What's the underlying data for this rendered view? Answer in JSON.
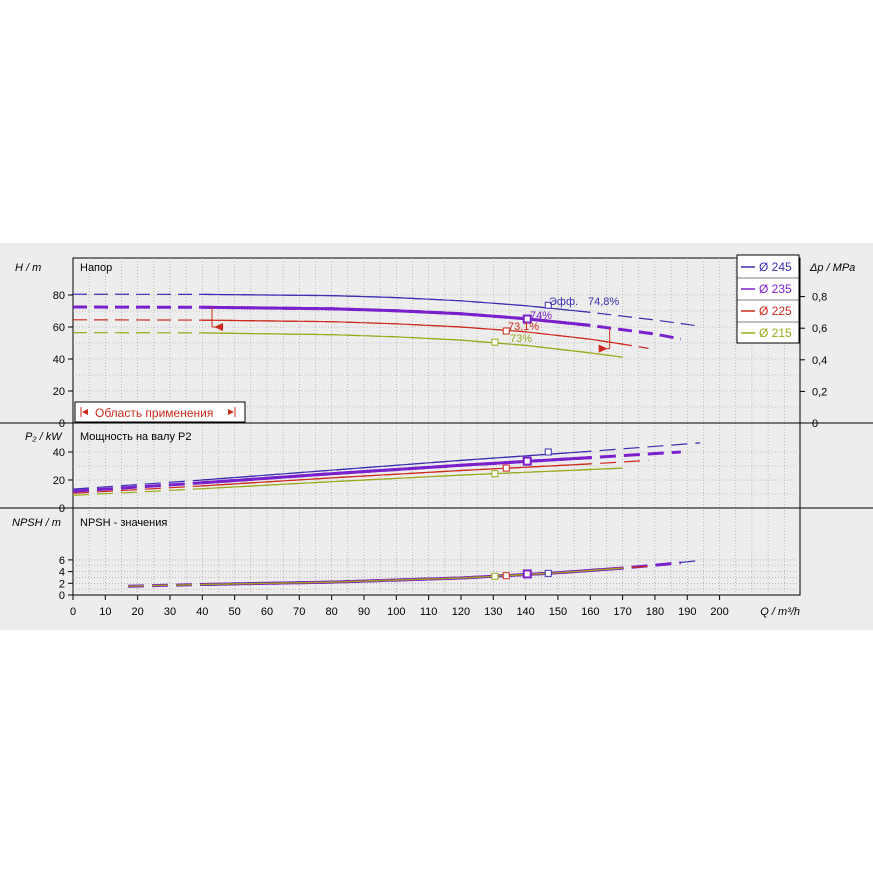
{
  "chart_data": [
    {
      "type": "line",
      "title": "Напор",
      "xlabel": "Q / m³/h",
      "ylabel": "H / m",
      "y2label": "Δp / MPa",
      "xlim": [
        0,
        225
      ],
      "ylim": [
        0,
        90
      ],
      "xticks": [
        0,
        10,
        20,
        30,
        40,
        50,
        60,
        70,
        80,
        90,
        100,
        110,
        120,
        130,
        140,
        150,
        160,
        170,
        180,
        190,
        200
      ],
      "yticks": [
        0,
        20,
        40,
        60,
        80
      ],
      "y2ticks": [
        0,
        0.2,
        0.4,
        0.6,
        0.8
      ],
      "y2ticklabels": [
        "0",
        "0,2",
        "0,4",
        "0,6",
        "0,8"
      ],
      "grid": true,
      "legend": "top-right",
      "series": [
        {
          "name": "Ø 245",
          "color": "#3a2fb0",
          "x": [
            0,
            40,
            80,
            100,
            120,
            140,
            160,
            180,
            194
          ],
          "values": [
            80.5,
            80.4,
            79.6,
            78.4,
            76.4,
            73.3,
            69.2,
            64.4,
            60.5
          ]
        },
        {
          "name": "Ø 235",
          "color": "#7a1fcc",
          "x": [
            0,
            40,
            80,
            100,
            120,
            140,
            160,
            180,
            188
          ],
          "values": [
            72.5,
            72.3,
            71.4,
            70.2,
            68.3,
            65.2,
            61.0,
            55.6,
            52.5
          ]
        },
        {
          "name": "Ø 225",
          "color": "#cc2a1c",
          "x": [
            0,
            40,
            80,
            100,
            120,
            140,
            160,
            170,
            178
          ],
          "values": [
            64.5,
            64.3,
            63.3,
            62.0,
            60.0,
            57.0,
            52.4,
            49.3,
            46.6
          ]
        },
        {
          "name": "Ø 215",
          "color": "#9aaa1c",
          "x": [
            0,
            40,
            80,
            100,
            120,
            140,
            160,
            170
          ],
          "values": [
            56.5,
            56.3,
            55.2,
            53.9,
            51.8,
            48.5,
            43.8,
            41.1
          ]
        }
      ],
      "annotations": [
        {
          "text": "Эфф.",
          "color": "#3a2fb0"
        },
        {
          "text": "74,8%",
          "color": "#3a2fb0"
        },
        {
          "text": "74%",
          "color": "#7a1fcc"
        },
        {
          "text": "73,1%",
          "color": "#cc2a1c"
        },
        {
          "text": "73%",
          "color": "#9aaa1c"
        }
      ],
      "efficiency_points": [
        {
          "series": "Ø 245",
          "x": 147,
          "y": 73.6
        },
        {
          "series": "Ø 235",
          "x": 140.5,
          "y": 65.0
        },
        {
          "series": "Ø 225",
          "x": 134,
          "y": 57.5
        },
        {
          "series": "Ø 215",
          "x": 130.5,
          "y": 50.5
        }
      ],
      "operating_range": {
        "label": "Область применения",
        "q_min": 43,
        "q_max": 166
      }
    },
    {
      "type": "line",
      "title": "Мощность на валу P2",
      "ylabel": "P₂ / kW",
      "xlim": [
        0,
        225
      ],
      "ylim": [
        0,
        50
      ],
      "yticks": [
        0,
        20,
        40
      ],
      "grid": true,
      "series": [
        {
          "name": "Ø 245",
          "color": "#3a2fb0",
          "x": [
            0,
            40,
            80,
            120,
            160,
            194
          ],
          "values": [
            13.5,
            20.0,
            27.0,
            34.0,
            40.5,
            46.5
          ]
        },
        {
          "name": "Ø 235",
          "color": "#7a1fcc",
          "x": [
            0,
            40,
            80,
            120,
            160,
            188
          ],
          "values": [
            12.0,
            18.0,
            24.5,
            30.5,
            36.0,
            40.0
          ]
        },
        {
          "name": "Ø 225",
          "color": "#cc2a1c",
          "x": [
            0,
            40,
            80,
            120,
            160,
            178
          ],
          "values": [
            10.5,
            15.8,
            21.5,
            26.8,
            31.5,
            34.0
          ]
        },
        {
          "name": "Ø 215",
          "color": "#9aaa1c",
          "x": [
            0,
            40,
            80,
            120,
            160,
            170
          ],
          "values": [
            9.0,
            13.8,
            18.8,
            23.5,
            27.5,
            28.5
          ]
        }
      ],
      "efficiency_points": [
        {
          "series": "Ø 245",
          "x": 147,
          "y": 40.0
        },
        {
          "series": "Ø 235",
          "x": 140.5,
          "y": 33.5
        },
        {
          "series": "Ø 225",
          "x": 134,
          "y": 28.5
        },
        {
          "series": "Ø 215",
          "x": 130.5,
          "y": 24.5
        }
      ]
    },
    {
      "type": "line",
      "title": "NPSH - значения",
      "ylabel": "NPSH / m",
      "xlim": [
        0,
        225
      ],
      "ylim": [
        0,
        7
      ],
      "yticks": [
        0,
        2,
        4,
        6
      ],
      "grid": true,
      "series": [
        {
          "name": "Ø 245",
          "color": "#3a2fb0",
          "x": [
            17,
            40,
            80,
            120,
            150,
            170,
            194
          ],
          "values": [
            1.5,
            1.8,
            2.2,
            2.9,
            3.8,
            4.6,
            5.9
          ]
        },
        {
          "name": "Ø 235",
          "color": "#7a1fcc",
          "x": [
            17,
            40,
            80,
            120,
            150,
            170,
            188
          ],
          "values": [
            1.5,
            1.8,
            2.2,
            2.9,
            3.8,
            4.6,
            5.5
          ]
        },
        {
          "name": "Ø 225",
          "color": "#cc2a1c",
          "x": [
            17,
            40,
            80,
            120,
            150,
            170,
            178
          ],
          "values": [
            1.5,
            1.8,
            2.2,
            2.9,
            3.8,
            4.6,
            4.9
          ]
        },
        {
          "name": "Ø 215",
          "color": "#9aaa1c",
          "x": [
            17,
            40,
            80,
            120,
            150,
            170
          ],
          "values": [
            1.5,
            1.8,
            2.2,
            2.9,
            3.8,
            4.6
          ]
        }
      ],
      "efficiency_points": [
        {
          "series": "Ø 245",
          "x": 147,
          "y": 3.7
        },
        {
          "series": "Ø 235",
          "x": 140.5,
          "y": 3.6
        },
        {
          "series": "Ø 225",
          "x": 134,
          "y": 3.3
        },
        {
          "series": "Ø 215",
          "x": 130.5,
          "y": 3.2
        }
      ]
    }
  ]
}
